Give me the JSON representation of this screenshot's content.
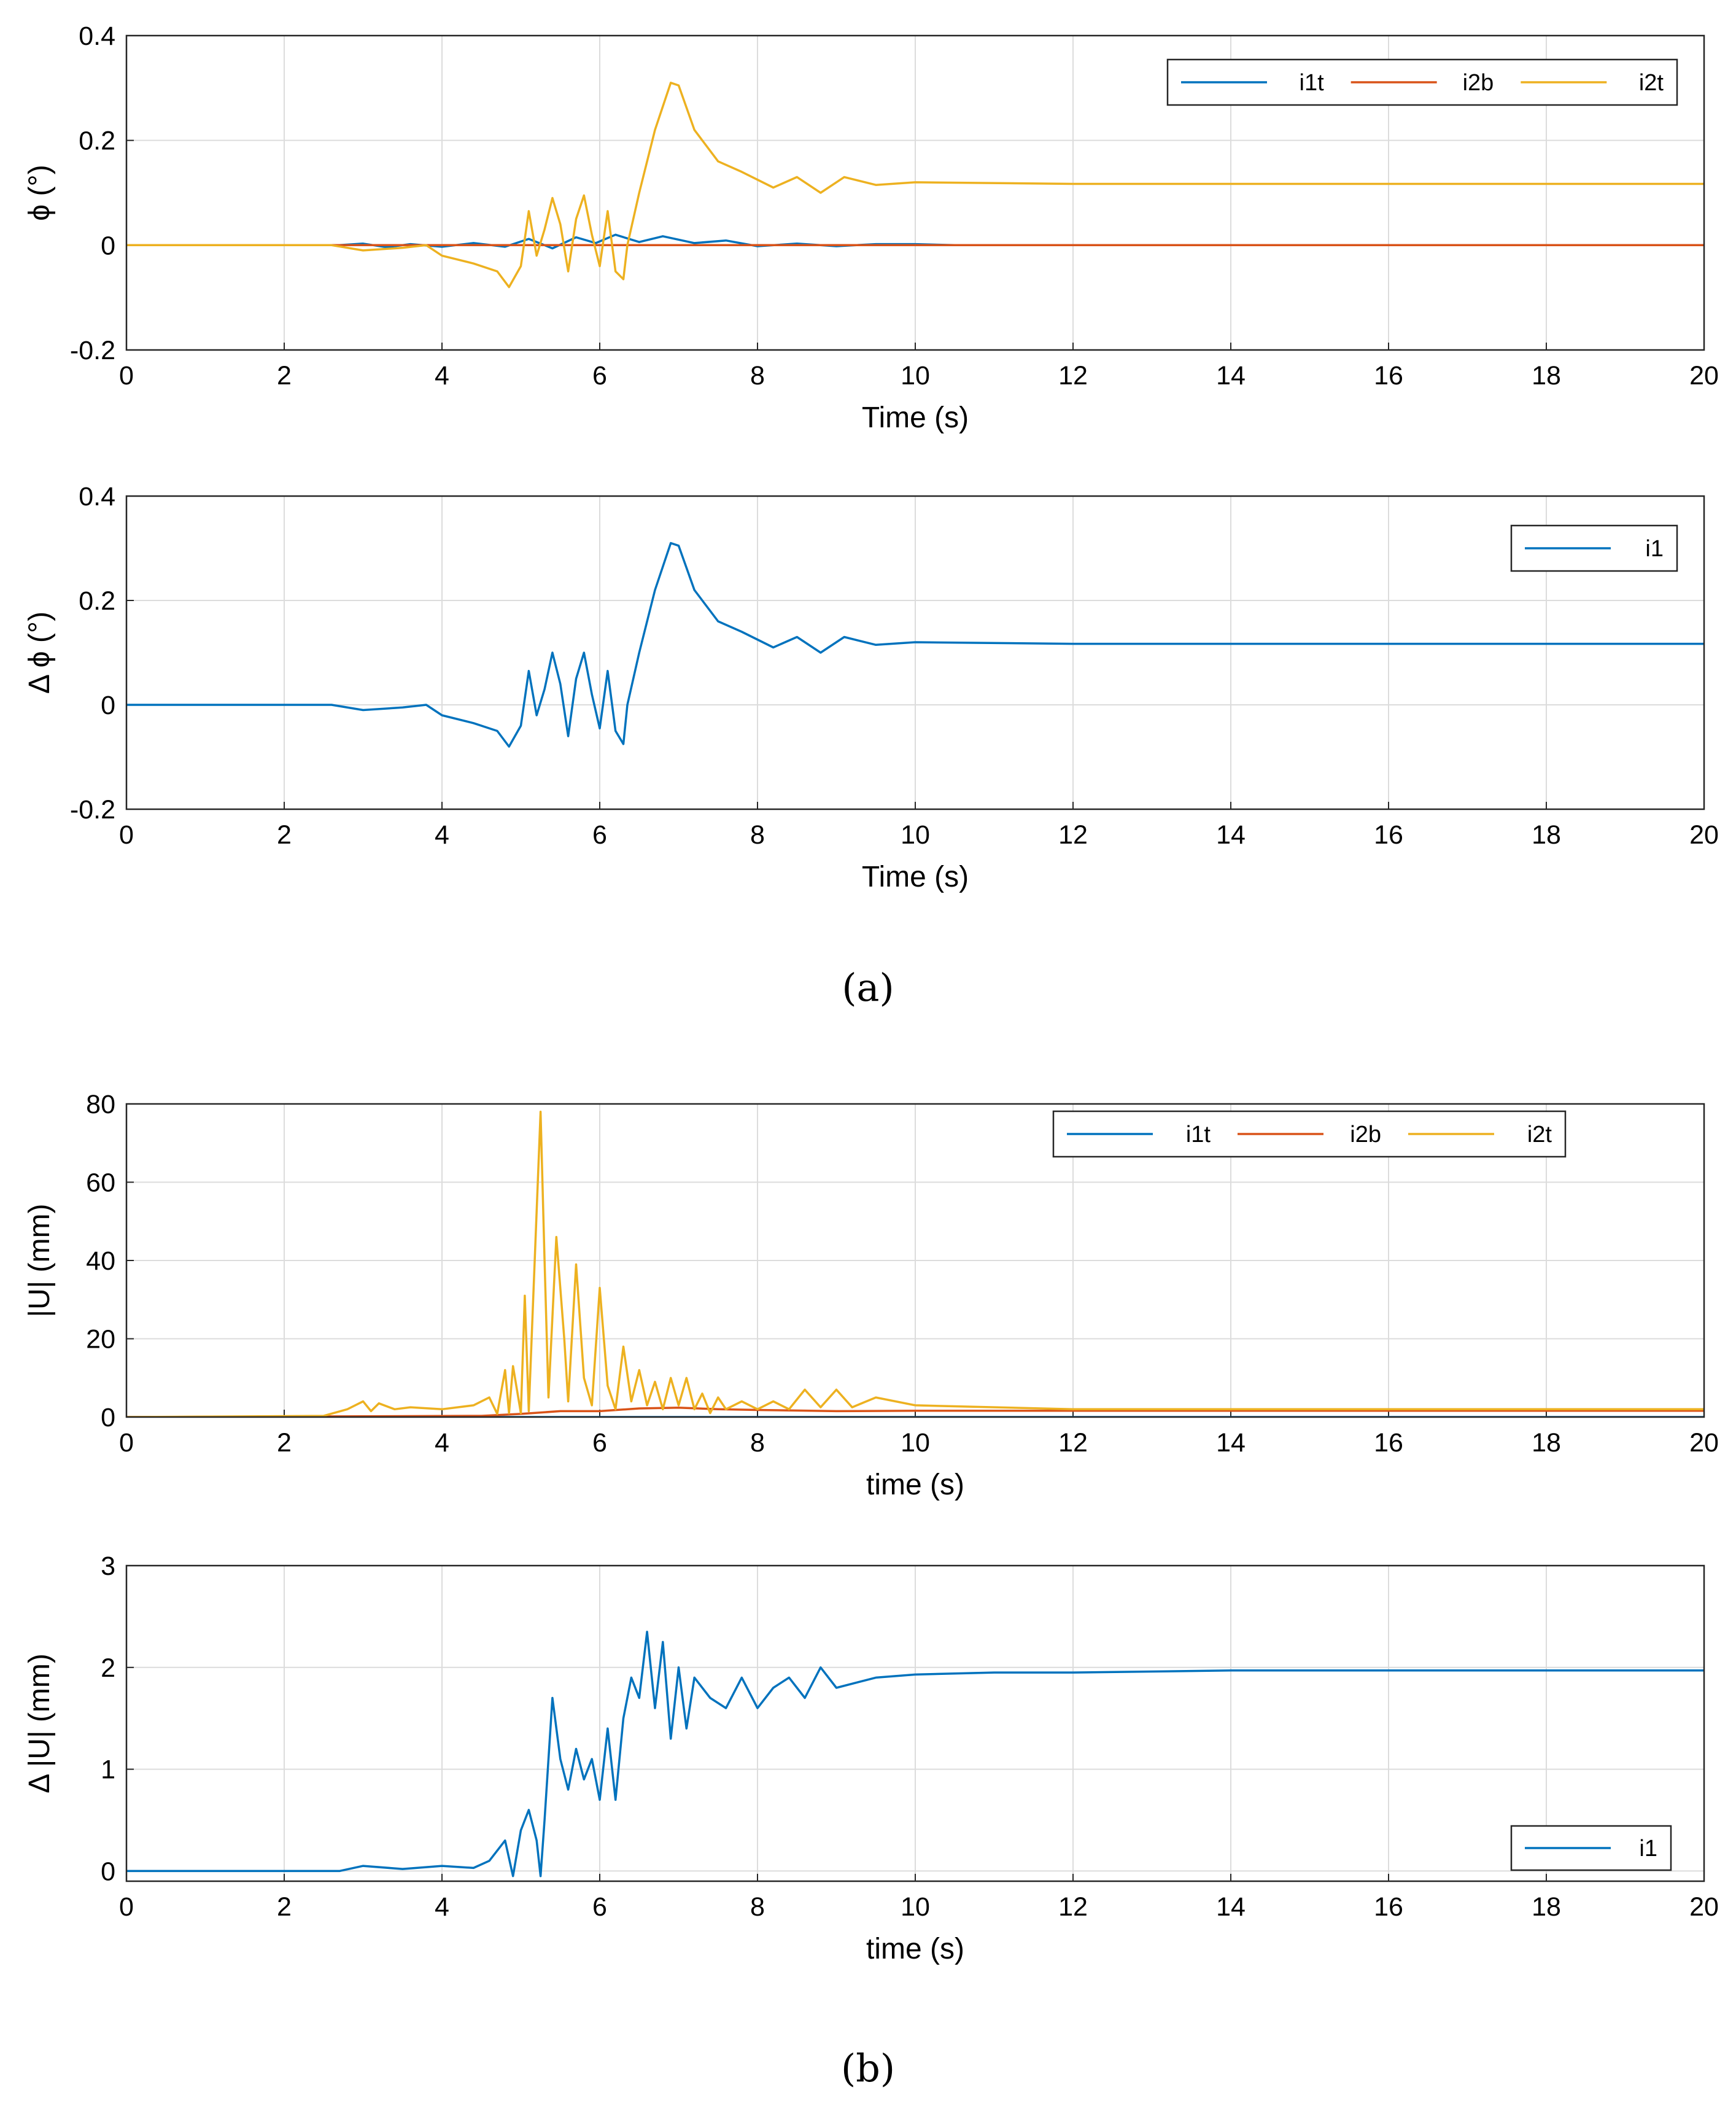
{
  "captions": {
    "a": "(a)",
    "b": "(b)"
  },
  "colors": {
    "i1t": "#0072BD",
    "i2b": "#D95319",
    "i2t": "#EDB120",
    "i1": "#0072BD",
    "grid": "#dcdcdc",
    "axes": "#262626"
  },
  "chart_data": [
    {
      "type": "line",
      "title": "",
      "xlabel": "Time (s)",
      "ylabel": "ϕ (°)",
      "xlim": [
        0,
        20
      ],
      "ylim": [
        -0.2,
        0.4
      ],
      "xticks": [
        "0",
        "2",
        "4",
        "6",
        "8",
        "10",
        "12",
        "14",
        "16",
        "18",
        "20"
      ],
      "yticks": [
        "-0.2",
        "0",
        "0.2",
        "0.4"
      ],
      "grid": true,
      "legend_position": "top-right",
      "series": [
        {
          "name": "i1t",
          "color": "#0072BD",
          "x": [
            0,
            2.7,
            3.0,
            3.3,
            3.6,
            4.0,
            4.4,
            4.8,
            5.1,
            5.4,
            5.7,
            5.95,
            6.2,
            6.5,
            6.8,
            7.2,
            7.6,
            8.0,
            8.5,
            9.0,
            9.5,
            10.0,
            10.5,
            11.0,
            20
          ],
          "y": [
            0,
            0,
            0.003,
            -0.004,
            0.002,
            -0.003,
            0.004,
            -0.003,
            0.012,
            -0.006,
            0.015,
            0.004,
            0.02,
            0.006,
            0.017,
            0.004,
            0.009,
            -0.002,
            0.003,
            -0.002,
            0.002,
            0.002,
            0,
            0,
            0
          ]
        },
        {
          "name": "i2b",
          "color": "#D95319",
          "x": [
            0,
            20
          ],
          "y": [
            0,
            0
          ]
        },
        {
          "name": "i2t",
          "color": "#EDB120",
          "x": [
            0,
            2.6,
            3.0,
            3.5,
            3.8,
            4.0,
            4.4,
            4.7,
            4.85,
            5.0,
            5.1,
            5.2,
            5.3,
            5.4,
            5.5,
            5.6,
            5.7,
            5.8,
            5.9,
            6.0,
            6.1,
            6.2,
            6.3,
            6.35,
            6.5,
            6.7,
            6.9,
            7.0,
            7.2,
            7.5,
            7.8,
            8.2,
            8.5,
            8.8,
            9.1,
            9.5,
            10.0,
            12.0,
            14.0,
            16.0,
            20.0
          ],
          "y": [
            0,
            0,
            -0.01,
            -0.005,
            0,
            -0.02,
            -0.035,
            -0.05,
            -0.08,
            -0.04,
            0.065,
            -0.02,
            0.03,
            0.09,
            0.04,
            -0.05,
            0.05,
            0.095,
            0.02,
            -0.04,
            0.065,
            -0.05,
            -0.065,
            0.0,
            0.1,
            0.22,
            0.31,
            0.305,
            0.22,
            0.16,
            0.14,
            0.11,
            0.13,
            0.1,
            0.13,
            0.115,
            0.12,
            0.117,
            0.117,
            0.117,
            0.117
          ]
        }
      ]
    },
    {
      "type": "line",
      "title": "",
      "xlabel": "Time (s)",
      "ylabel": "Δ ϕ (°)",
      "xlim": [
        0,
        20
      ],
      "ylim": [
        -0.2,
        0.4
      ],
      "xticks": [
        "0",
        "2",
        "4",
        "6",
        "8",
        "10",
        "12",
        "14",
        "16",
        "18",
        "20"
      ],
      "yticks": [
        "-0.2",
        "0",
        "0.2",
        "0.4"
      ],
      "grid": true,
      "legend_position": "top-right",
      "series": [
        {
          "name": "i1",
          "color": "#0072BD",
          "x": [
            0,
            2.6,
            3.0,
            3.5,
            3.8,
            4.0,
            4.4,
            4.7,
            4.85,
            5.0,
            5.1,
            5.2,
            5.3,
            5.4,
            5.5,
            5.6,
            5.7,
            5.8,
            5.9,
            6.0,
            6.1,
            6.2,
            6.3,
            6.35,
            6.5,
            6.7,
            6.9,
            7.0,
            7.2,
            7.5,
            7.8,
            8.2,
            8.5,
            8.8,
            9.1,
            9.5,
            10.0,
            12.0,
            14.0,
            16.0,
            20.0
          ],
          "y": [
            0,
            0,
            -0.01,
            -0.005,
            0,
            -0.02,
            -0.035,
            -0.05,
            -0.08,
            -0.04,
            0.065,
            -0.02,
            0.03,
            0.1,
            0.04,
            -0.06,
            0.05,
            0.1,
            0.02,
            -0.045,
            0.065,
            -0.05,
            -0.075,
            0.0,
            0.1,
            0.22,
            0.31,
            0.305,
            0.22,
            0.16,
            0.14,
            0.11,
            0.13,
            0.1,
            0.13,
            0.115,
            0.12,
            0.117,
            0.117,
            0.117,
            0.117
          ]
        }
      ]
    },
    {
      "type": "line",
      "title": "",
      "xlabel": "time (s)",
      "ylabel": "|U| (mm)",
      "xlim": [
        0,
        20
      ],
      "ylim": [
        0,
        80
      ],
      "xticks": [
        "0",
        "2",
        "4",
        "6",
        "8",
        "10",
        "12",
        "14",
        "16",
        "18",
        "20"
      ],
      "yticks": [
        "0",
        "20",
        "40",
        "60",
        "80"
      ],
      "grid": true,
      "legend_position": "top-right",
      "series": [
        {
          "name": "i1t",
          "color": "#0072BD",
          "x": [
            0,
            20
          ],
          "y": [
            0,
            0
          ]
        },
        {
          "name": "i2b",
          "color": "#D95319",
          "x": [
            0,
            4.5,
            5.0,
            5.5,
            6.0,
            6.5,
            7.0,
            7.5,
            8.0,
            9.0,
            10.0,
            20.0
          ],
          "y": [
            0,
            0.3,
            0.8,
            1.5,
            1.5,
            2.2,
            2.4,
            2.0,
            1.8,
            1.5,
            1.6,
            1.6
          ]
        },
        {
          "name": "i2t",
          "color": "#EDB120",
          "x": [
            0,
            2.5,
            2.8,
            3.0,
            3.1,
            3.2,
            3.4,
            3.6,
            4.0,
            4.4,
            4.6,
            4.7,
            4.8,
            4.85,
            4.9,
            5.0,
            5.05,
            5.1,
            5.25,
            5.3,
            5.35,
            5.45,
            5.55,
            5.6,
            5.7,
            5.8,
            5.9,
            6.0,
            6.1,
            6.2,
            6.3,
            6.4,
            6.5,
            6.6,
            6.7,
            6.8,
            6.9,
            7.0,
            7.1,
            7.2,
            7.3,
            7.4,
            7.5,
            7.6,
            7.8,
            8.0,
            8.2,
            8.4,
            8.6,
            8.8,
            9.0,
            9.2,
            9.5,
            10.0,
            12.0,
            16.0,
            20.0
          ],
          "y": [
            0,
            0.3,
            2.0,
            4.0,
            1.5,
            3.5,
            2.0,
            2.5,
            2.0,
            3.0,
            5.0,
            0.8,
            12.0,
            1.0,
            13.0,
            1.0,
            31.0,
            1.5,
            78.0,
            40.0,
            5.0,
            46.0,
            20.0,
            4.0,
            39.0,
            10.0,
            3.0,
            33.0,
            8.0,
            2.0,
            18.0,
            4.0,
            12.0,
            3.0,
            9.0,
            2.0,
            10.0,
            3.0,
            10.0,
            2.0,
            6.0,
            1.0,
            5.0,
            2.0,
            4.0,
            2.0,
            4.0,
            2.0,
            7.0,
            2.5,
            7.0,
            2.5,
            5.0,
            3.0,
            2.0,
            2.0,
            2.0
          ]
        }
      ]
    },
    {
      "type": "line",
      "title": "",
      "xlabel": "time (s)",
      "ylabel": "Δ |U| (mm)",
      "xlim": [
        0,
        20
      ],
      "ylim": [
        -0.1,
        3
      ],
      "xticks": [
        "0",
        "2",
        "4",
        "6",
        "8",
        "10",
        "12",
        "14",
        "16",
        "18",
        "20"
      ],
      "yticks": [
        "0",
        "1",
        "2",
        "3"
      ],
      "grid": true,
      "legend_position": "bottom-right",
      "series": [
        {
          "name": "i1",
          "color": "#0072BD",
          "x": [
            0,
            2.7,
            3.0,
            3.5,
            4.0,
            4.4,
            4.6,
            4.8,
            4.9,
            5.0,
            5.1,
            5.2,
            5.25,
            5.3,
            5.4,
            5.5,
            5.6,
            5.7,
            5.8,
            5.9,
            6.0,
            6.1,
            6.2,
            6.3,
            6.4,
            6.5,
            6.6,
            6.7,
            6.8,
            6.9,
            7.0,
            7.1,
            7.2,
            7.4,
            7.6,
            7.8,
            8.0,
            8.2,
            8.4,
            8.6,
            8.8,
            9.0,
            9.5,
            10.0,
            11.0,
            12.0,
            14.0,
            16.0,
            20.0
          ],
          "y": [
            0,
            0,
            0.05,
            0.02,
            0.05,
            0.03,
            0.1,
            0.3,
            -0.05,
            0.4,
            0.6,
            0.3,
            -0.05,
            0.5,
            1.7,
            1.1,
            0.8,
            1.2,
            0.9,
            1.1,
            0.7,
            1.4,
            0.7,
            1.5,
            1.9,
            1.7,
            2.35,
            1.6,
            2.25,
            1.3,
            2.0,
            1.4,
            1.9,
            1.7,
            1.6,
            1.9,
            1.6,
            1.8,
            1.9,
            1.7,
            2.0,
            1.8,
            1.9,
            1.93,
            1.95,
            1.95,
            1.97,
            1.97,
            1.97
          ]
        }
      ]
    }
  ]
}
